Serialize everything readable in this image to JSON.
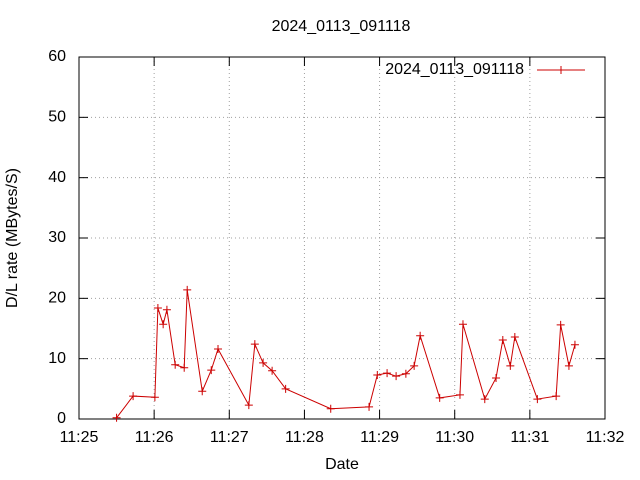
{
  "chart_data": {
    "type": "line",
    "title": "2024_0113_091118",
    "x_label": "Date",
    "y_label": "D/L rate (MBytes/S)",
    "x": [
      685.5,
      685.72,
      686.01,
      686.05,
      686.12,
      686.17,
      686.28,
      686.4,
      686.44,
      686.64,
      686.76,
      686.85,
      687.26,
      687.34,
      687.45,
      687.57,
      687.75,
      688.35,
      688.86,
      688.97,
      689.1,
      689.22,
      689.35,
      689.46,
      689.54,
      689.8,
      690.07,
      690.11,
      690.4,
      690.55,
      690.64,
      690.74,
      690.8,
      691.1,
      691.35,
      691.41,
      691.52,
      691.6
    ],
    "series": [
      {
        "name": "2024_0113_091118",
        "color": "#cc0000",
        "values": [
          0.2,
          3.8,
          3.6,
          18.4,
          15.7,
          18.1,
          9.0,
          8.5,
          21.4,
          4.6,
          8.1,
          11.6,
          2.3,
          12.4,
          9.3,
          8.0,
          5.0,
          1.7,
          2.0,
          7.3,
          7.6,
          7.1,
          7.5,
          8.8,
          13.8,
          3.5,
          4.0,
          15.7,
          3.3,
          6.8,
          13.1,
          8.8,
          13.6,
          3.3,
          3.8,
          15.6,
          8.8,
          12.3
        ]
      }
    ],
    "xlim": [
      685,
      692
    ],
    "xticks": [
      {
        "value": 685,
        "label": "11:25"
      },
      {
        "value": 686,
        "label": "11:26"
      },
      {
        "value": 687,
        "label": "11:27"
      },
      {
        "value": 688,
        "label": "11:28"
      },
      {
        "value": 689,
        "label": "11:29"
      },
      {
        "value": 690,
        "label": "11:30"
      },
      {
        "value": 691,
        "label": "11:31"
      },
      {
        "value": 692,
        "label": "11:32"
      }
    ],
    "ylim": [
      0,
      60
    ],
    "yticks": [
      0,
      10,
      20,
      30,
      40,
      50,
      60
    ],
    "grid": true,
    "legend": "top-right"
  }
}
